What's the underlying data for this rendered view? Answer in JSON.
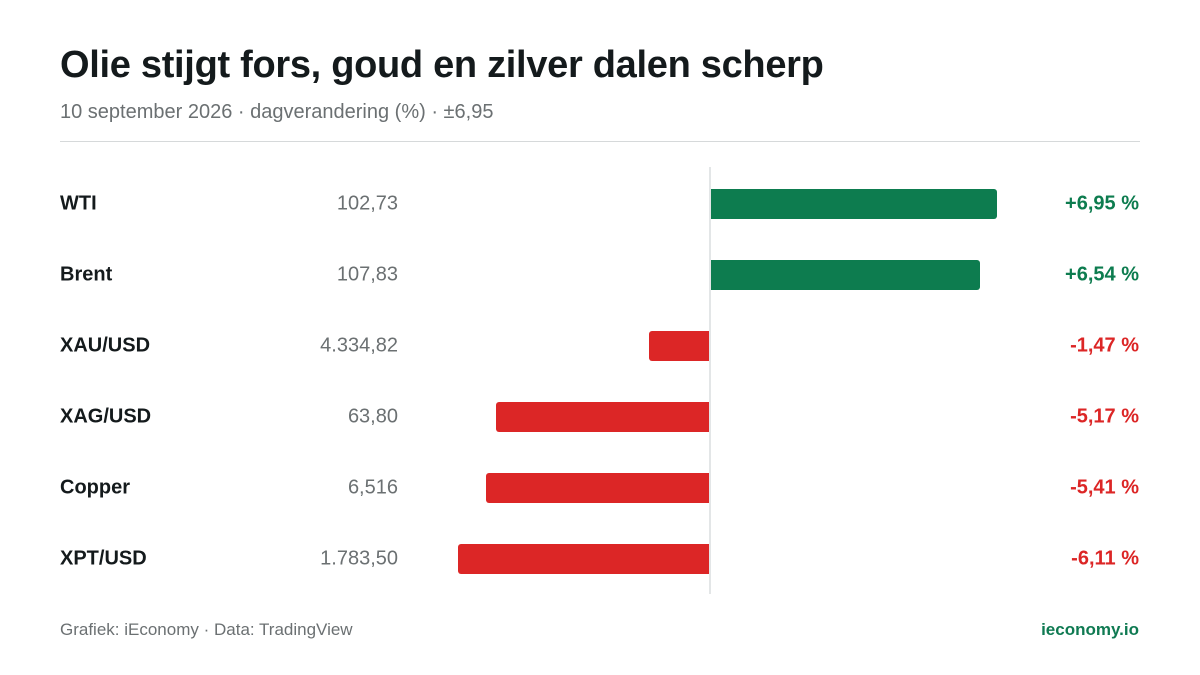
{
  "title": "Olie stijgt fors, goud en zilver dalen scherp",
  "subtitle": "10 september 2026 · dagverandering (%) · ±6,95",
  "footer": {
    "source": "Grafiek: iEconomy · Data: TradingView",
    "site": "ieconomy.io"
  },
  "colors": {
    "positive": "#0d7c4f",
    "negative": "#dc2626"
  },
  "chart_data": {
    "type": "bar",
    "orientation": "horizontal",
    "categories": [
      "WTI",
      "Brent",
      "XAU/USD",
      "XAG/USD",
      "Copper",
      "XPT/USD"
    ],
    "prices": [
      "102,73",
      "107,83",
      "4.334,82",
      "63,80",
      "6,516",
      "1.783,50"
    ],
    "values": [
      6.95,
      6.54,
      -1.47,
      -5.17,
      -5.41,
      -6.11
    ],
    "value_labels": [
      "+6,95 %",
      "+6,54 %",
      "-1,47 %",
      "-5,17 %",
      "-5,41 %",
      "-6,11 %"
    ],
    "xlim": [
      -6.95,
      6.95
    ],
    "unit": "%"
  }
}
